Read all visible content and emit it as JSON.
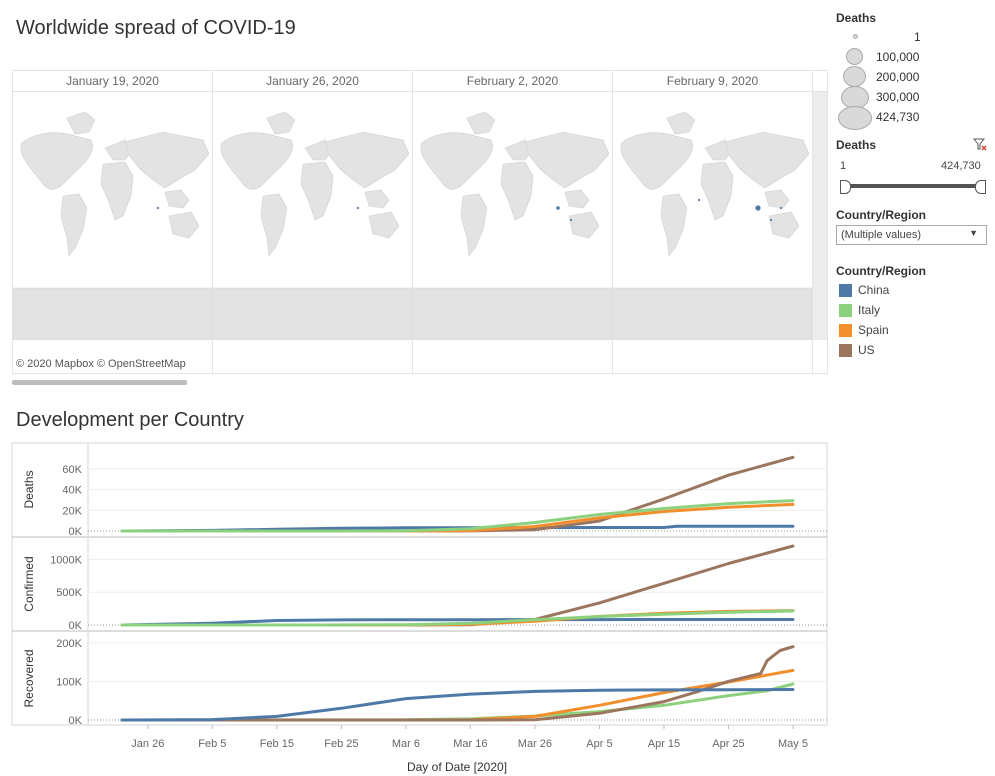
{
  "dashboard": {
    "map_title": "Worldwide spread of COVID-19",
    "chart_title": "Development per Country",
    "attribution": "© 2020 Mapbox © OpenStreetMap",
    "map_dates": [
      "January 19, 2020",
      "January 26, 2020",
      "February 2, 2020",
      "February 9, 2020"
    ]
  },
  "size_legend": {
    "title": "Deaths",
    "entries": [
      "1",
      "100,000",
      "200,000",
      "300,000",
      "424,730"
    ]
  },
  "deaths_filter": {
    "title": "Deaths",
    "min_label": "1",
    "max_label": "424,730"
  },
  "country_filter": {
    "title": "Country/Region",
    "value": "(Multiple values)"
  },
  "color_legend": {
    "title": "Country/Region",
    "items": [
      {
        "name": "China",
        "color": "#4e79a7"
      },
      {
        "name": "Italy",
        "color": "#8cd17d"
      },
      {
        "name": "Spain",
        "color": "#f28e2b"
      },
      {
        "name": "US",
        "color": "#9c755f"
      }
    ]
  },
  "chart_data": {
    "type": "line",
    "xlabel": "Day of Date [2020]",
    "x_ticks": [
      "Jan 26",
      "Feb 5",
      "Feb 15",
      "Feb 25",
      "Mar 6",
      "Mar 16",
      "Mar 26",
      "Apr 5",
      "Apr 15",
      "Apr 25",
      "May 5"
    ],
    "x_range": [
      "Jan 22",
      "May 5"
    ],
    "series_names": [
      "China",
      "Italy",
      "Spain",
      "US"
    ],
    "panels": [
      {
        "ylabel": "Deaths",
        "yticks": [
          "0K",
          "20K",
          "40K",
          "60K"
        ],
        "ylim": [
          0,
          80000
        ],
        "points": {
          "China": [
            [
              "Jan 22",
              17
            ],
            [
              "Feb 5",
              564
            ],
            [
              "Feb 15",
              1666
            ],
            [
              "Feb 25",
              2663
            ],
            [
              "Mar 6",
              3072
            ],
            [
              "Mar 16",
              3217
            ],
            [
              "Mar 26",
              3287
            ],
            [
              "Apr 5",
              3329
            ],
            [
              "Apr 15",
              3342
            ],
            [
              "Apr 17",
              4632
            ],
            [
              "Apr 25",
              4632
            ],
            [
              "May 5",
              4637
            ]
          ],
          "Italy": [
            [
              "Jan 22",
              0
            ],
            [
              "Feb 22",
              2
            ],
            [
              "Mar 6",
              233
            ],
            [
              "Mar 16",
              2158
            ],
            [
              "Mar 26",
              8165
            ],
            [
              "Apr 5",
              15887
            ],
            [
              "Apr 15",
              21645
            ],
            [
              "Apr 25",
              26384
            ],
            [
              "May 5",
              29315
            ]
          ],
          "Spain": [
            [
              "Jan 22",
              0
            ],
            [
              "Mar 6",
              5
            ],
            [
              "Mar 16",
              342
            ],
            [
              "Mar 26",
              4365
            ],
            [
              "Apr 5",
              12641
            ],
            [
              "Apr 15",
              18812
            ],
            [
              "Apr 25",
              22902
            ],
            [
              "May 5",
              25613
            ]
          ],
          "US": [
            [
              "Jan 22",
              0
            ],
            [
              "Mar 6",
              14
            ],
            [
              "Mar 16",
              97
            ],
            [
              "Mar 26",
              1295
            ],
            [
              "Apr 5",
              9619
            ],
            [
              "Apr 15",
              30985
            ],
            [
              "Apr 25",
              53755
            ],
            [
              "May 5",
              71064
            ]
          ]
        }
      },
      {
        "ylabel": "Confirmed",
        "yticks": [
          "0K",
          "500K",
          "1000K"
        ],
        "ylim": [
          0,
          1250000
        ],
        "points": {
          "China": [
            [
              "Jan 22",
              548
            ],
            [
              "Feb 5",
              28018
            ],
            [
              "Feb 15",
              68347
            ],
            [
              "Feb 25",
              78166
            ],
            [
              "Mar 6",
              80738
            ],
            [
              "Mar 16",
              81033
            ],
            [
              "Mar 26",
              81782
            ],
            [
              "Apr 5",
              82602
            ],
            [
              "Apr 15",
              83356
            ],
            [
              "Apr 25",
              83912
            ],
            [
              "May 5",
              83966
            ]
          ],
          "Italy": [
            [
              "Jan 22",
              0
            ],
            [
              "Feb 22",
              62
            ],
            [
              "Mar 6",
              4636
            ],
            [
              "Mar 16",
              27980
            ],
            [
              "Mar 26",
              80589
            ],
            [
              "Apr 5",
              128948
            ],
            [
              "Apr 15",
              165155
            ],
            [
              "Apr 25",
              195351
            ],
            [
              "May 5",
              213013
            ]
          ],
          "Spain": [
            [
              "Jan 22",
              0
            ],
            [
              "Mar 6",
              500
            ],
            [
              "Mar 16",
              9942
            ],
            [
              "Mar 26",
              57786
            ],
            [
              "Apr 5",
              130759
            ],
            [
              "Apr 15",
              177644
            ],
            [
              "Apr 25",
              207634
            ],
            [
              "May 5",
              219329
            ]
          ],
          "US": [
            [
              "Jan 22",
              1
            ],
            [
              "Mar 6",
              278
            ],
            [
              "Mar 16",
              4632
            ],
            [
              "Mar 26",
              83836
            ],
            [
              "Apr 5",
              337072
            ],
            [
              "Apr 15",
              636350
            ],
            [
              "Apr 25",
              938154
            ],
            [
              "May 5",
              1204351
            ]
          ]
        }
      },
      {
        "ylabel": "Recovered",
        "yticks": [
          "0K",
          "100K",
          "200K"
        ],
        "ylim": [
          0,
          215000
        ],
        "points": {
          "China": [
            [
              "Jan 22",
              28
            ],
            [
              "Feb 5",
              1153
            ],
            [
              "Feb 15",
              9395
            ],
            [
              "Feb 25",
              30384
            ],
            [
              "Mar 6",
              55478
            ],
            [
              "Mar 16",
              67017
            ],
            [
              "Mar 26",
              74181
            ],
            [
              "Apr 5",
              77207
            ],
            [
              "Apr 15",
              77892
            ],
            [
              "Apr 25",
              78474
            ],
            [
              "May 5",
              78977
            ]
          ],
          "Italy": [
            [
              "Jan 22",
              0
            ],
            [
              "Mar 6",
              523
            ],
            [
              "Mar 16",
              2749
            ],
            [
              "Mar 26",
              10361
            ],
            [
              "Apr 5",
              21815
            ],
            [
              "Apr 15",
              38092
            ],
            [
              "Apr 25",
              63120
            ],
            [
              "May 1",
              75945
            ],
            [
              "May 5",
              93245
            ]
          ],
          "Spain": [
            [
              "Jan 22",
              0
            ],
            [
              "Mar 6",
              30
            ],
            [
              "Mar 16",
              530
            ],
            [
              "Mar 26",
              9357
            ],
            [
              "Apr 5",
              38080
            ],
            [
              "Apr 15",
              70853
            ],
            [
              "Apr 25",
              98372
            ],
            [
              "May 5",
              128511
            ]
          ],
          "US": [
            [
              "Jan 22",
              0
            ],
            [
              "Mar 16",
              0
            ],
            [
              "Mar 26",
              681
            ],
            [
              "Apr 5",
              17448
            ],
            [
              "Apr 15",
              47763
            ],
            [
              "Apr 20",
              72329
            ],
            [
              "Apr 25",
              100372
            ],
            [
              "Apr 30",
              120720
            ],
            [
              "May 1",
              153947
            ],
            [
              "May 3",
              180152
            ],
            [
              "May 5",
              189791
            ]
          ]
        }
      }
    ]
  }
}
